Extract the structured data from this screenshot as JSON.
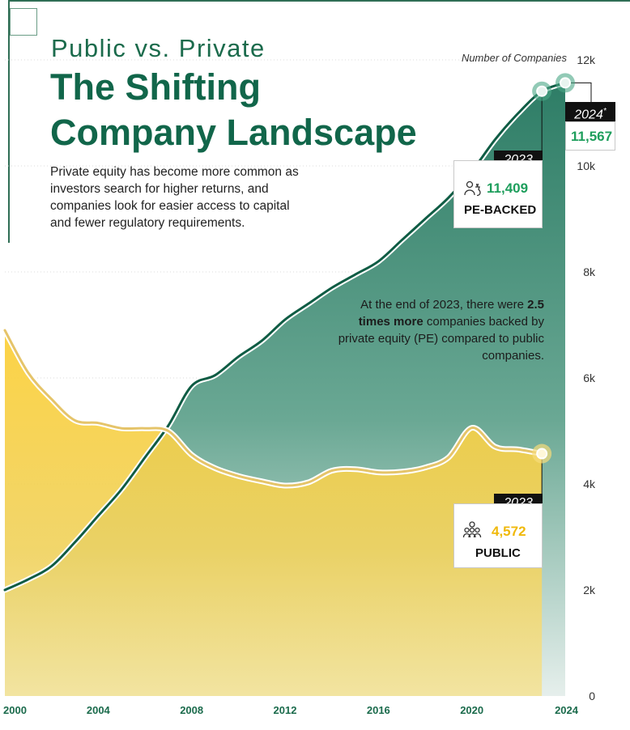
{
  "header": {
    "subtitle": "Public vs. Private",
    "title_line1": "The Shifting",
    "title_line2": "Company Landscape",
    "description": "Private equity has become more common as investors search for higher returns, and companies look for easier access to capital and fewer regulatory requirements."
  },
  "annotation": {
    "part1": "At the end of 2023, there were ",
    "bold": "2.5 times more",
    "part2": " companies backed by private equity (PE) compared to public companies."
  },
  "callouts": {
    "pe_2023": {
      "year": "2023",
      "value": "11,409",
      "label": "PE-BACKED",
      "icon": "money-bag-person-icon"
    },
    "pe_2024": {
      "year": "2024",
      "marker": "*",
      "value": "11,567"
    },
    "public_2023": {
      "year": "2023",
      "value": "4,572",
      "label": "PUBLIC",
      "icon": "people-group-icon"
    }
  },
  "colors": {
    "pe_dark": "#2e7d66",
    "pe_line": "#0f5c44",
    "pe_value": "#1e9e5c",
    "public_fill": "#f2cf49",
    "public_value": "#f0b90b",
    "public_line": "#e5c46a"
  },
  "chart_data": {
    "type": "area",
    "title": "Number of Companies",
    "xlabel": "",
    "ylabel": "Number of Companies",
    "xlim": [
      2000,
      2024
    ],
    "ylim": [
      0,
      12000
    ],
    "x_ticks": [
      2000,
      2004,
      2008,
      2012,
      2016,
      2020,
      2024
    ],
    "x_tick_labels": [
      "2000",
      "2004",
      "2008",
      "2012",
      "2016",
      "2020",
      "2024"
    ],
    "y_ticks": [
      0,
      2000,
      4000,
      6000,
      8000,
      10000,
      12000
    ],
    "y_tick_labels": [
      "0",
      "2k",
      "4k",
      "6k",
      "8k",
      "10k",
      "12k"
    ],
    "series": [
      {
        "name": "PE-BACKED",
        "x": [
          2000,
          2001,
          2002,
          2003,
          2004,
          2005,
          2006,
          2007,
          2008,
          2009,
          2010,
          2011,
          2012,
          2013,
          2014,
          2015,
          2016,
          2017,
          2018,
          2019,
          2020,
          2021,
          2022,
          2023,
          2024
        ],
        "values": [
          2000,
          2200,
          2450,
          2900,
          3400,
          3900,
          4500,
          5100,
          5850,
          6050,
          6400,
          6700,
          7100,
          7400,
          7700,
          7950,
          8200,
          8600,
          9000,
          9400,
          9900,
          10500,
          11000,
          11409,
          11567
        ]
      },
      {
        "name": "PUBLIC",
        "x": [
          2000,
          2001,
          2002,
          2003,
          2004,
          2005,
          2006,
          2007,
          2008,
          2009,
          2010,
          2011,
          2012,
          2013,
          2014,
          2015,
          2016,
          2017,
          2018,
          2019,
          2020,
          2021,
          2022,
          2023
        ],
        "values": [
          6900,
          6100,
          5600,
          5200,
          5150,
          5050,
          5050,
          5000,
          4550,
          4300,
          4150,
          4050,
          3970,
          4030,
          4250,
          4280,
          4220,
          4230,
          4310,
          4500,
          5060,
          4700,
          4650,
          4572
        ]
      }
    ]
  }
}
